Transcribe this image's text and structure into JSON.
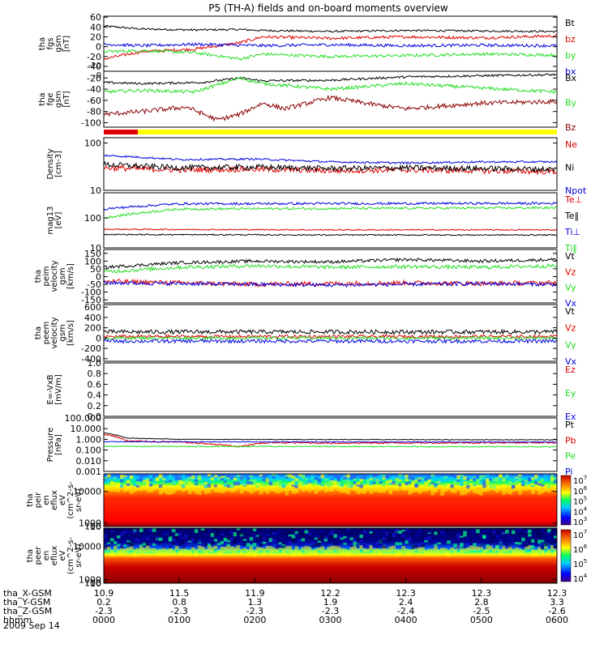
{
  "title": "P5 (TH-A) fields and on-board moments overview",
  "date": "2009 Sep 14",
  "colors": {
    "black": "#000000",
    "red": "#e00000",
    "green": "#22dd22",
    "blue": "#0000dd",
    "darkred": "#8b0000",
    "yellow": "#ffff00"
  },
  "chart_data": [
    {
      "type": "line",
      "id": "fgs",
      "ylabel": [
        "tha",
        "fgs",
        "gsm",
        "[nT]"
      ],
      "ylim": [
        -50,
        62
      ],
      "ticks": [
        "60",
        "40",
        "20",
        "0",
        "-20",
        "-40"
      ],
      "tick_values": [
        60,
        40,
        20,
        0,
        -20,
        -40
      ],
      "legend": [
        "Bt",
        "bz",
        "by",
        "bx"
      ],
      "series": [
        {
          "name": "Bt",
          "color": "black",
          "noise": 2,
          "x": [
            0,
            0.5,
            1.2,
            1.8,
            2.1,
            3,
            4,
            5,
            6
          ],
          "y": [
            42,
            36,
            34,
            35,
            33,
            31,
            33,
            32,
            31
          ]
        },
        {
          "name": "bz",
          "color": "red",
          "noise": 3,
          "x": [
            0,
            0.5,
            1.2,
            1.8,
            2.1,
            3,
            4,
            5,
            6
          ],
          "y": [
            -25,
            -10,
            -5,
            8,
            20,
            17,
            20,
            18,
            22
          ]
        },
        {
          "name": "by",
          "color": "green",
          "noise": 3,
          "x": [
            0,
            0.5,
            1.2,
            1.8,
            2.1,
            3,
            4,
            5,
            6
          ],
          "y": [
            -10,
            -8,
            -12,
            -25,
            -15,
            -20,
            -18,
            -15,
            -17
          ]
        },
        {
          "name": "bx",
          "color": "blue",
          "noise": 3,
          "x": [
            0,
            0.5,
            1.2,
            1.8,
            2.1,
            3,
            4,
            5,
            6
          ],
          "y": [
            5,
            2,
            5,
            3,
            2,
            4,
            2,
            3,
            2
          ]
        }
      ]
    },
    {
      "type": "line",
      "id": "fge",
      "ylabel": [
        "tha",
        "fge",
        "gsm",
        "[nT]"
      ],
      "ylim": [
        -108,
        -8
      ],
      "ticks": [
        "-20",
        "-40",
        "-60",
        "-80",
        "-100"
      ],
      "tick_values": [
        -20,
        -40,
        -60,
        -80,
        -100
      ],
      "top_labels": [
        "-0",
        "-20"
      ],
      "legend": [
        "Bx",
        "By",
        "Bz"
      ],
      "series": [
        {
          "name": "Bx",
          "color": "black",
          "noise": 2,
          "x": [
            0,
            0.5,
            1.3,
            1.8,
            2.1,
            3,
            4,
            5,
            6
          ],
          "y": [
            -28,
            -30,
            -28,
            -20,
            -25,
            -24,
            -18,
            -16,
            -14
          ]
        },
        {
          "name": "By",
          "color": "green",
          "noise": 3,
          "x": [
            0,
            0.5,
            1.2,
            1.8,
            2.1,
            3,
            4,
            5,
            6
          ],
          "y": [
            -45,
            -42,
            -45,
            -20,
            -30,
            -40,
            -30,
            -38,
            -45
          ]
        },
        {
          "name": "Bz",
          "color": "darkred",
          "noise": 4,
          "x": [
            0,
            0.5,
            1.1,
            1.5,
            1.8,
            2.1,
            2.4,
            3,
            3.6,
            4,
            5,
            6
          ],
          "y": [
            -85,
            -80,
            -72,
            -95,
            -85,
            -65,
            -75,
            -55,
            -68,
            -75,
            -65,
            -62
          ]
        }
      ]
    },
    {
      "type": "line",
      "id": "density",
      "log": true,
      "ylabel": [
        "Density",
        "[cm-3]"
      ],
      "ylim": [
        10,
        130
      ],
      "ticks": [
        "100",
        "10"
      ],
      "tick_values": [
        100,
        10
      ],
      "legend": [
        "Ne",
        "Ni",
        "Npot"
      ],
      "series": [
        {
          "name": "Ne",
          "color": "red",
          "noise": 0.06,
          "x": [
            0,
            1,
            2,
            3,
            4,
            5,
            6
          ],
          "y": [
            30,
            27,
            28,
            26,
            27,
            26,
            25
          ]
        },
        {
          "name": "Ni",
          "color": "black",
          "noise": 0.06,
          "x": [
            0,
            1,
            2,
            3,
            4,
            5,
            6
          ],
          "y": [
            35,
            30,
            31,
            29,
            30,
            29,
            28
          ]
        },
        {
          "name": "Npot",
          "color": "blue",
          "noise": 0.02,
          "x": [
            0,
            1,
            2,
            3,
            4,
            5,
            6
          ],
          "y": [
            55,
            45,
            46,
            40,
            38,
            40,
            40
          ]
        }
      ]
    },
    {
      "type": "line",
      "id": "temperature",
      "log": true,
      "ylabel": [
        "mag13",
        "[eV]"
      ],
      "ylim": [
        10,
        700
      ],
      "ticks": [
        "100",
        "10"
      ],
      "tick_values": [
        100,
        10
      ],
      "legend": [
        "Te⊥",
        "Te‖",
        "Ti⊥",
        "Ti‖"
      ],
      "series": [
        {
          "name": "Te⊥",
          "color": "red",
          "noise": 0.02,
          "x": [
            0,
            3,
            6
          ],
          "y": [
            42,
            40,
            40
          ]
        },
        {
          "name": "Te‖",
          "color": "black",
          "noise": 0.02,
          "x": [
            0,
            3,
            6
          ],
          "y": [
            28,
            27,
            27
          ]
        },
        {
          "name": "Ti⊥",
          "color": "blue",
          "noise": 0.04,
          "x": [
            0,
            0.5,
            1,
            6
          ],
          "y": [
            200,
            250,
            300,
            310
          ]
        },
        {
          "name": "Ti‖",
          "color": "green",
          "noise": 0.04,
          "x": [
            0,
            0.5,
            1,
            6
          ],
          "y": [
            100,
            150,
            200,
            220
          ]
        }
      ]
    },
    {
      "type": "line",
      "id": "peim",
      "ylabel": [
        "tha",
        "peim",
        "velocity",
        "gsm",
        "[km/s]"
      ],
      "ylim": [
        -170,
        175
      ],
      "ticks": [
        "150",
        "100",
        "50",
        "0",
        "-50",
        "-100",
        "-150"
      ],
      "tick_values": [
        150,
        100,
        50,
        0,
        -50,
        -100,
        -150
      ],
      "legend": [
        "Vt",
        "Vz",
        "Vy",
        "Vx"
      ],
      "series": [
        {
          "name": "Vt",
          "color": "black",
          "noise": 10,
          "x": [
            0,
            1,
            2,
            3,
            4,
            5,
            6
          ],
          "y": [
            60,
            90,
            100,
            95,
            110,
            100,
            110
          ]
        },
        {
          "name": "Vz",
          "color": "red",
          "noise": 15,
          "x": [
            0,
            1,
            2,
            3,
            4,
            5,
            6
          ],
          "y": [
            -30,
            -40,
            -50,
            -45,
            -40,
            -45,
            -40
          ]
        },
        {
          "name": "Vy",
          "color": "green",
          "noise": 12,
          "x": [
            0,
            1,
            2,
            3,
            4,
            5,
            6
          ],
          "y": [
            30,
            60,
            70,
            60,
            65,
            60,
            70
          ]
        },
        {
          "name": "Vx",
          "color": "blue",
          "noise": 12,
          "x": [
            0,
            1,
            2,
            3,
            4,
            5,
            6
          ],
          "y": [
            -40,
            -45,
            -50,
            -55,
            -50,
            -45,
            -50
          ]
        }
      ]
    },
    {
      "type": "line",
      "id": "peem",
      "ylabel": [
        "tha",
        "peem",
        "velocity",
        "gsm",
        "[km/s]"
      ],
      "ylim": [
        -450,
        650
      ],
      "ticks": [
        "600",
        "400",
        "200",
        "0",
        "-200",
        "-400"
      ],
      "tick_values": [
        600,
        400,
        200,
        0,
        -200,
        -400
      ],
      "legend": [
        "Vt",
        "Vz",
        "Vy",
        "Vx"
      ],
      "series": [
        {
          "name": "Vt",
          "color": "black",
          "noise": 40,
          "x": [
            0,
            6
          ],
          "y": [
            120,
            120
          ]
        },
        {
          "name": "Vz",
          "color": "red",
          "noise": 30,
          "x": [
            0,
            6
          ],
          "y": [
            30,
            30
          ]
        },
        {
          "name": "Vy",
          "color": "green",
          "noise": 30,
          "x": [
            0,
            6
          ],
          "y": [
            0,
            0
          ]
        },
        {
          "name": "Vx",
          "color": "blue",
          "noise": 35,
          "x": [
            0,
            6
          ],
          "y": [
            -60,
            -60
          ]
        }
      ]
    },
    {
      "type": "line",
      "id": "efield",
      "ylabel": [
        "E=-VxB",
        "[mV/m]"
      ],
      "ylim": [
        0,
        1
      ],
      "ticks": [
        "1.0",
        "0.8",
        "0.6",
        "0.4",
        "0.2",
        "0.0"
      ],
      "tick_values": [
        1.0,
        0.8,
        0.6,
        0.4,
        0.2,
        0.0
      ],
      "legend": [
        "Ez",
        "Ey",
        "Ex"
      ],
      "series": []
    },
    {
      "type": "line",
      "id": "pressure",
      "log": true,
      "ylabel": [
        "Pressure",
        "[nPa]"
      ],
      "ylim": [
        0.001,
        100
      ],
      "ticks": [
        "100.000",
        "10.000",
        "1.000",
        "0.100",
        "0.010",
        "0.001"
      ],
      "tick_values": [
        100,
        10,
        1,
        0.1,
        0.01,
        0.001
      ],
      "legend": [
        "Pt",
        "Pb",
        "Pe",
        "Pi"
      ],
      "series": [
        {
          "name": "Pt",
          "color": "black",
          "noise": 0.03,
          "x": [
            0,
            0.3,
            1,
            6
          ],
          "y": [
            4,
            1.3,
            1.0,
            0.9
          ]
        },
        {
          "name": "Pb",
          "color": "red",
          "noise": 0.08,
          "x": [
            0,
            0.3,
            1,
            1.8,
            2.2,
            3,
            6
          ],
          "y": [
            3,
            0.7,
            0.55,
            0.2,
            0.5,
            0.45,
            0.5
          ]
        },
        {
          "name": "Pe",
          "color": "green",
          "noise": 0.04,
          "x": [
            0,
            6
          ],
          "y": [
            0.22,
            0.2
          ]
        },
        {
          "name": "Pi",
          "color": "blue",
          "noise": 0.03,
          "x": [
            0,
            6
          ],
          "y": [
            0.6,
            0.55
          ]
        }
      ]
    },
    {
      "type": "heatmap",
      "id": "peir",
      "ylabel": [
        "tha",
        "peir",
        "en",
        "eflux",
        "eV",
        "(cm^2-s-",
        "sr-eV)"
      ],
      "ylim": [
        8,
        15000
      ],
      "ticks": [
        "10000",
        "1000",
        "100",
        "10"
      ],
      "tick_values": [
        10000,
        1000,
        100,
        10
      ],
      "colorbar_ticks": [
        "10^7",
        "10^6",
        "10^5",
        "10^4",
        "10^3"
      ]
    },
    {
      "type": "heatmap",
      "id": "peer",
      "ylabel": [
        "tha",
        "peer",
        "en",
        "eflux",
        "eV",
        "(cm^2-s-",
        "sr-eV)"
      ],
      "ylim": [
        8,
        15000
      ],
      "ticks": [
        "10000",
        "1000",
        "100",
        "10"
      ],
      "tick_values": [
        10000,
        1000,
        100,
        10
      ],
      "colorbar_ticks": [
        "10^7",
        "10^6",
        "10^5",
        "10^4"
      ]
    }
  ],
  "xaxis": {
    "range": [
      0,
      6
    ],
    "rows": [
      {
        "label": "tha_X-GSM",
        "values": [
          "10.9",
          "11.5",
          "11.9",
          "12.2",
          "12.3",
          "12.3",
          "12.3"
        ]
      },
      {
        "label": "tha_Y-GSM",
        "values": [
          "0.2",
          "0.8",
          "1.3",
          "1.9",
          "2.4",
          "2.8",
          "3.3"
        ]
      },
      {
        "label": "tha_Z-GSM",
        "values": [
          "-2.3",
          "-2.3",
          "-2.3",
          "-2.3",
          "-2.4",
          "-2.5",
          "-2.6"
        ]
      },
      {
        "label": "hhmm",
        "values": [
          "0000",
          "0100",
          "0200",
          "0300",
          "0400",
          "0500",
          "0600"
        ]
      }
    ]
  }
}
